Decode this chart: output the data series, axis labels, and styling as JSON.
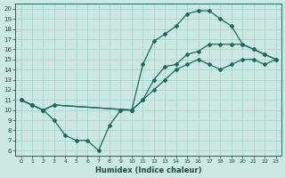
{
  "xlabel": "Humidex (Indice chaleur)",
  "bg_color": "#cbe8e2",
  "grid_color": "#a8d4cc",
  "line_color": "#1a6b5a",
  "xlim": [
    -0.5,
    23.5
  ],
  "ylim": [
    5.5,
    20.5
  ],
  "xticks": [
    0,
    1,
    2,
    3,
    4,
    5,
    6,
    7,
    8,
    9,
    10,
    11,
    12,
    13,
    14,
    15,
    16,
    17,
    18,
    19,
    20,
    21,
    22,
    23
  ],
  "yticks": [
    6,
    7,
    8,
    9,
    10,
    11,
    12,
    13,
    14,
    15,
    16,
    17,
    18,
    19,
    20
  ],
  "line1_x": [
    0,
    1,
    2,
    3,
    4,
    5,
    6,
    7,
    8,
    9,
    10,
    11,
    12,
    13,
    14,
    15,
    16,
    17,
    18,
    19,
    20,
    21,
    22,
    23
  ],
  "line1_y": [
    11,
    10.5,
    10,
    9,
    7.5,
    7,
    7,
    6,
    8.5,
    10,
    10,
    14.5,
    16.8,
    17.5,
    18.3,
    19.5,
    19.8,
    19.8,
    19,
    18.3,
    16.5,
    16,
    15.5,
    15
  ],
  "line2_x": [
    0,
    1,
    2,
    3,
    10,
    11,
    12,
    13,
    14,
    15,
    16,
    17,
    18,
    19,
    20,
    21,
    22,
    23
  ],
  "line2_y": [
    11,
    10.5,
    10,
    10.5,
    10,
    11,
    13,
    14.3,
    14.5,
    15.5,
    15.8,
    16.5,
    16.5,
    16.5,
    16.5,
    16,
    15.5,
    15
  ],
  "line3_x": [
    0,
    1,
    2,
    3,
    10,
    11,
    12,
    13,
    14,
    15,
    16,
    17,
    18,
    19,
    20,
    21,
    22,
    23
  ],
  "line3_y": [
    11,
    10.5,
    10,
    10.5,
    10,
    11,
    12,
    13,
    14,
    14.5,
    15,
    14.5,
    14,
    14.5,
    15,
    15,
    14.5,
    15
  ]
}
